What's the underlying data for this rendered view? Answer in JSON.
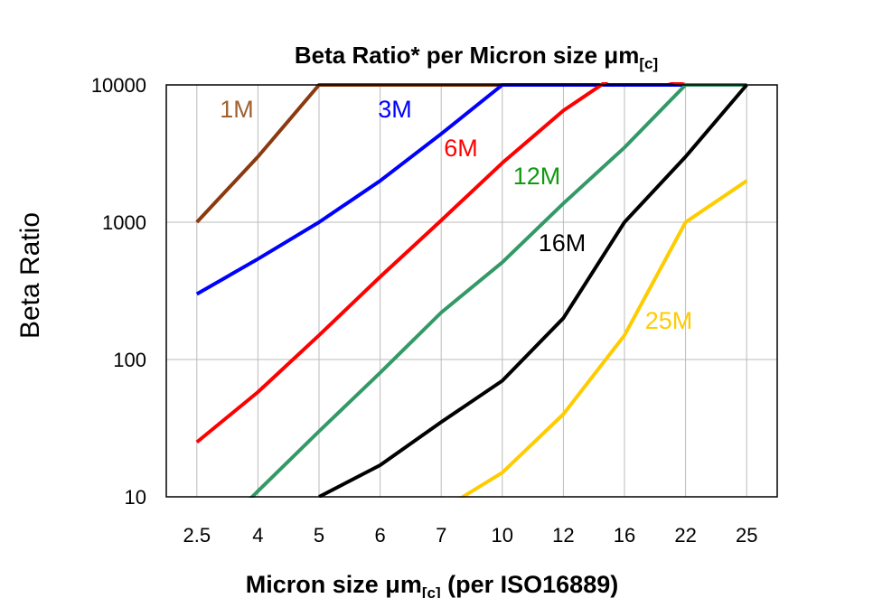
{
  "chart_data": {
    "type": "line",
    "title": "Beta Ratio* per Micron size μm",
    "title_subscript": "[c]",
    "xlabel": "Micron size μm",
    "xlabel_subscript": "[c]",
    "xlabel_suffix": " (per ISO16889)",
    "ylabel": "Beta Ratio",
    "categories": [
      "2.5",
      "4",
      "5",
      "6",
      "7",
      "10",
      "12",
      "16",
      "22",
      "25"
    ],
    "yscale": "log",
    "ylim": [
      10,
      10000
    ],
    "yticks": [
      "10",
      "100",
      "1000",
      "10000"
    ],
    "grid": true,
    "series": [
      {
        "name": "1M",
        "color": "#8B3A0F",
        "label_color": "#A0602E",
        "values": [
          1000,
          3000,
          10000,
          10000,
          10000,
          10000,
          10000,
          10000,
          10000,
          10000
        ]
      },
      {
        "name": "3M",
        "color": "#0000FF",
        "label_color": "#0000FF",
        "values": [
          300,
          540,
          1000,
          2000,
          4400,
          10000,
          10000,
          10000,
          10000,
          10000
        ]
      },
      {
        "name": "6M",
        "color": "#FF0000",
        "label_color": "#FF0000",
        "values": [
          25,
          58,
          150,
          400,
          1030,
          2700,
          6500,
          13000,
          10000,
          10000
        ]
      },
      {
        "name": "12M",
        "color": "#339966",
        "label_color": "#119911",
        "values": [
          4,
          11,
          30,
          80,
          220,
          510,
          1370,
          3500,
          10000,
          10000
        ]
      },
      {
        "name": "16M",
        "color": "#000000",
        "label_color": "#000000",
        "values": [
          null,
          null,
          10,
          17,
          35,
          70,
          200,
          1000,
          3000,
          10000
        ]
      },
      {
        "name": "25M",
        "color": "#FFCC00",
        "label_color": "#FFCC00",
        "values": [
          null,
          null,
          null,
          null,
          8,
          15,
          40,
          150,
          1000,
          2000
        ]
      }
    ]
  }
}
